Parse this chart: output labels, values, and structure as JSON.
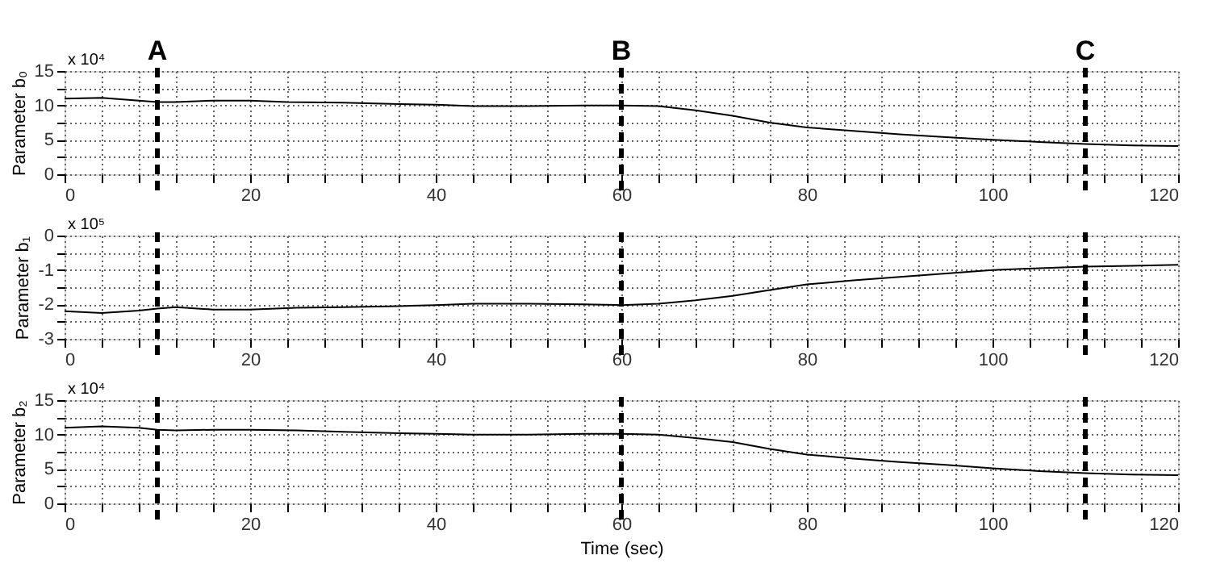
{
  "chart_data": [
    {
      "type": "line",
      "ylabel": "Parameter b₀",
      "annotations": [
        "x 10⁴"
      ],
      "x": [
        0,
        4,
        8,
        10,
        12,
        16,
        20,
        24,
        30,
        36,
        40,
        44,
        50,
        56,
        60,
        64,
        68,
        72,
        76,
        80,
        85,
        90,
        95,
        100,
        105,
        110,
        115,
        120
      ],
      "series": [
        {
          "color": "#000000",
          "values": [
            11,
            11.1,
            10.7,
            10.5,
            10.5,
            10.7,
            10.7,
            10.5,
            10.4,
            10.2,
            10.1,
            9.9,
            9.9,
            10,
            10,
            9.9,
            9.3,
            8.5,
            7.5,
            6.8,
            6.3,
            5.8,
            5.4,
            5.0,
            4.7,
            4.4,
            4.2,
            4.1
          ]
        }
      ],
      "xlim": [
        0,
        120
      ],
      "xticks": [
        0,
        {
          "value": 4,
          "label": null
        },
        {
          "value": 8,
          "label": null
        },
        {
          "value": 12,
          "label": null
        },
        {
          "value": 16,
          "label": null
        },
        20,
        {
          "value": 24,
          "label": null
        },
        {
          "value": 28,
          "label": null
        },
        {
          "value": 32,
          "label": null
        },
        {
          "value": 36,
          "label": null
        },
        40,
        {
          "value": 44,
          "label": null
        },
        {
          "value": 48,
          "label": null
        },
        {
          "value": 52,
          "label": null
        },
        {
          "value": 56,
          "label": null
        },
        60,
        {
          "value": 64,
          "label": null
        },
        {
          "value": 68,
          "label": null
        },
        {
          "value": 72,
          "label": null
        },
        {
          "value": 76,
          "label": null
        },
        80,
        {
          "value": 84,
          "label": null
        },
        {
          "value": 88,
          "label": null
        },
        {
          "value": 92,
          "label": null
        },
        {
          "value": 96,
          "label": null
        },
        100,
        {
          "value": 104,
          "label": null
        },
        {
          "value": 108,
          "label": null
        },
        {
          "value": 112,
          "label": null
        },
        {
          "value": 116,
          "label": null
        },
        120
      ],
      "ylim": [
        0,
        15
      ],
      "yticks": [
        0,
        {
          "value": 2.5,
          "label": null
        },
        5,
        {
          "value": 7.5,
          "label": null
        },
        10,
        {
          "value": 12.5,
          "label": null
        },
        15
      ],
      "grid": true,
      "marker": "none",
      "line_style": "solid",
      "ref_lines": [
        {
          "axis": "x",
          "value": 10,
          "label": "A",
          "color": "#000000",
          "line_style": "dashed"
        },
        {
          "axis": "x",
          "value": 60,
          "label": "B",
          "color": "#000000",
          "line_style": "dashed"
        },
        {
          "axis": "x",
          "value": 110,
          "label": "C",
          "color": "#000000",
          "line_style": "dashed"
        }
      ]
    },
    {
      "type": "line",
      "ylabel": "Parameter b₁",
      "annotations": [
        "x 10⁵"
      ],
      "x": [
        0,
        4,
        8,
        10,
        12,
        16,
        20,
        25,
        30,
        36,
        40,
        44,
        50,
        56,
        60,
        64,
        68,
        72,
        76,
        80,
        85,
        90,
        95,
        100,
        105,
        110,
        115,
        120
      ],
      "series": [
        {
          "color": "#000000",
          "values": [
            -2.2,
            -2.25,
            -2.18,
            -2.12,
            -2.08,
            -2.15,
            -2.15,
            -2.1,
            -2.08,
            -2.05,
            -2.02,
            -1.98,
            -1.98,
            -2.0,
            -2.02,
            -1.98,
            -1.88,
            -1.75,
            -1.58,
            -1.42,
            -1.3,
            -1.2,
            -1.1,
            -1.0,
            -0.95,
            -0.9,
            -0.88,
            -0.85
          ]
        }
      ],
      "xlim": [
        0,
        120
      ],
      "xticks": [
        0,
        {
          "value": 4,
          "label": null
        },
        {
          "value": 8,
          "label": null
        },
        {
          "value": 12,
          "label": null
        },
        {
          "value": 16,
          "label": null
        },
        20,
        {
          "value": 24,
          "label": null
        },
        {
          "value": 28,
          "label": null
        },
        {
          "value": 32,
          "label": null
        },
        {
          "value": 36,
          "label": null
        },
        40,
        {
          "value": 44,
          "label": null
        },
        {
          "value": 48,
          "label": null
        },
        {
          "value": 52,
          "label": null
        },
        {
          "value": 56,
          "label": null
        },
        60,
        {
          "value": 64,
          "label": null
        },
        {
          "value": 68,
          "label": null
        },
        {
          "value": 72,
          "label": null
        },
        {
          "value": 76,
          "label": null
        },
        80,
        {
          "value": 84,
          "label": null
        },
        {
          "value": 88,
          "label": null
        },
        {
          "value": 92,
          "label": null
        },
        {
          "value": 96,
          "label": null
        },
        100,
        {
          "value": 104,
          "label": null
        },
        {
          "value": 108,
          "label": null
        },
        {
          "value": 112,
          "label": null
        },
        {
          "value": 116,
          "label": null
        },
        120
      ],
      "ylim": [
        -3,
        0
      ],
      "yticks": [
        -3,
        {
          "value": -2.5,
          "label": null
        },
        -2,
        {
          "value": -1.5,
          "label": null
        },
        -1,
        {
          "value": -0.5,
          "label": null
        },
        0
      ],
      "grid": true,
      "marker": "none",
      "line_style": "solid",
      "ref_lines": [
        {
          "axis": "x",
          "value": 10,
          "color": "#000000",
          "line_style": "dashed"
        },
        {
          "axis": "x",
          "value": 60,
          "color": "#000000",
          "line_style": "dashed"
        },
        {
          "axis": "x",
          "value": 110,
          "color": "#000000",
          "line_style": "dashed"
        }
      ]
    },
    {
      "type": "line",
      "xlabel": "Time (sec)",
      "ylabel": "Parameter b₂",
      "annotations": [
        "x 10⁴"
      ],
      "x": [
        0,
        4,
        8,
        10,
        12,
        16,
        20,
        25,
        30,
        36,
        40,
        44,
        50,
        56,
        60,
        64,
        68,
        72,
        76,
        80,
        85,
        90,
        95,
        100,
        105,
        110,
        115,
        120
      ],
      "series": [
        {
          "color": "#000000",
          "values": [
            11,
            11.2,
            11,
            10.7,
            10.6,
            10.7,
            10.7,
            10.6,
            10.4,
            10.2,
            10.1,
            10.0,
            10.0,
            10.1,
            10.1,
            10,
            9.5,
            8.9,
            7.9,
            7.1,
            6.5,
            6.0,
            5.6,
            5.1,
            4.7,
            4.4,
            4.2,
            4.1
          ]
        }
      ],
      "xlim": [
        0,
        120
      ],
      "xticks": [
        0,
        {
          "value": 4,
          "label": null
        },
        {
          "value": 8,
          "label": null
        },
        {
          "value": 12,
          "label": null
        },
        {
          "value": 16,
          "label": null
        },
        20,
        {
          "value": 24,
          "label": null
        },
        {
          "value": 28,
          "label": null
        },
        {
          "value": 32,
          "label": null
        },
        {
          "value": 36,
          "label": null
        },
        40,
        {
          "value": 44,
          "label": null
        },
        {
          "value": 48,
          "label": null
        },
        {
          "value": 52,
          "label": null
        },
        {
          "value": 56,
          "label": null
        },
        60,
        {
          "value": 64,
          "label": null
        },
        {
          "value": 68,
          "label": null
        },
        {
          "value": 72,
          "label": null
        },
        {
          "value": 76,
          "label": null
        },
        80,
        {
          "value": 84,
          "label": null
        },
        {
          "value": 88,
          "label": null
        },
        {
          "value": 92,
          "label": null
        },
        {
          "value": 96,
          "label": null
        },
        100,
        {
          "value": 104,
          "label": null
        },
        {
          "value": 108,
          "label": null
        },
        {
          "value": 112,
          "label": null
        },
        {
          "value": 116,
          "label": null
        },
        120
      ],
      "ylim": [
        0,
        15
      ],
      "yticks": [
        0,
        {
          "value": 2.5,
          "label": null
        },
        5,
        {
          "value": 7.5,
          "label": null
        },
        10,
        {
          "value": 12.5,
          "label": null
        },
        15
      ],
      "grid": true,
      "marker": "none",
      "line_style": "solid",
      "ref_lines": [
        {
          "axis": "x",
          "value": 10,
          "color": "#000000",
          "line_style": "dashed"
        },
        {
          "axis": "x",
          "value": 60,
          "color": "#000000",
          "line_style": "dashed"
        },
        {
          "axis": "x",
          "value": 110,
          "color": "#000000",
          "line_style": "dashed"
        }
      ]
    }
  ]
}
